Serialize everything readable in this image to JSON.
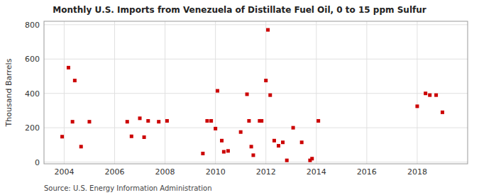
{
  "chart_data": {
    "type": "scatter",
    "title": "Monthly U.S. Imports from Venezuela of Distillate Fuel Oil, 0 to 15 ppm Sulfur",
    "y_label": "Thousand Barrels",
    "annotation": "Source: U.S. Energy Information Administration",
    "color": "#cc0000",
    "marker": "square",
    "grid": true,
    "xlim": [
      2003.2,
      2020.0
    ],
    "ylim": [
      -10,
      820
    ],
    "xticks": [
      2004,
      2006,
      2008,
      2010,
      2012,
      2014,
      2016,
      2018
    ],
    "yticks": [
      0,
      200,
      400,
      600,
      800
    ],
    "x": [
      2003.92,
      2004.17,
      2004.33,
      2004.42,
      2004.67,
      2005.0,
      2006.5,
      2006.67,
      2007.0,
      2007.17,
      2007.33,
      2007.75,
      2008.08,
      2009.5,
      2009.67,
      2009.83,
      2010.0,
      2010.08,
      2010.25,
      2010.33,
      2010.5,
      2011.0,
      2011.25,
      2011.33,
      2011.42,
      2011.5,
      2011.75,
      2011.83,
      2012.0,
      2012.08,
      2012.17,
      2012.33,
      2012.5,
      2012.67,
      2012.83,
      2013.08,
      2013.42,
      2013.75,
      2013.83,
      2014.08,
      2018.0,
      2018.33,
      2018.5,
      2018.75,
      2019.0
    ],
    "values": [
      148,
      550,
      235,
      475,
      90,
      235,
      235,
      150,
      255,
      145,
      240,
      235,
      240,
      50,
      240,
      240,
      195,
      415,
      125,
      60,
      65,
      175,
      395,
      240,
      90,
      40,
      240,
      240,
      475,
      770,
      390,
      125,
      95,
      115,
      10,
      200,
      115,
      10,
      20,
      240,
      325,
      400,
      390,
      390,
      290
    ]
  }
}
